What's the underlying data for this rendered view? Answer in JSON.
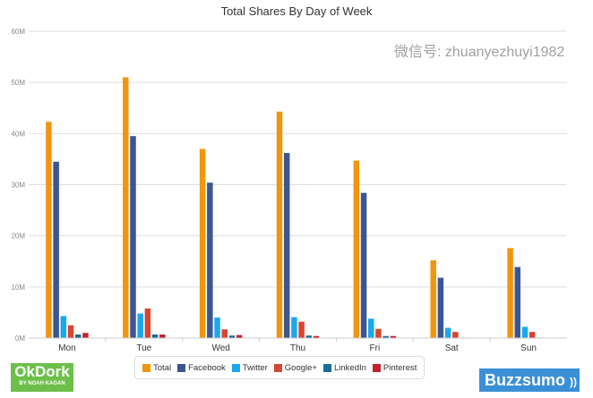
{
  "chart_data": {
    "type": "bar",
    "title": "Total Shares By Day of Week",
    "xlabel": "",
    "ylabel": "",
    "ylim": [
      0,
      60
    ],
    "yticks": [
      "0M",
      "10M",
      "20M",
      "30M",
      "40M",
      "50M",
      "60M"
    ],
    "ytick_values": [
      0,
      10,
      20,
      30,
      40,
      50,
      60
    ],
    "grid": true,
    "legend_position": "bottom",
    "categories": [
      "Mon",
      "Tue",
      "Wed",
      "Thu",
      "Fri",
      "Sat",
      "Sun"
    ],
    "series": [
      {
        "name": "Total",
        "color": "#f0960e",
        "values": [
          42.3,
          51.0,
          37.0,
          44.3,
          34.7,
          15.2,
          17.6
        ]
      },
      {
        "name": "Facebook",
        "color": "#3b5694",
        "values": [
          34.5,
          39.5,
          30.4,
          36.2,
          28.4,
          11.8,
          13.9
        ]
      },
      {
        "name": "Twitter",
        "color": "#1ba8e8",
        "values": [
          4.3,
          4.8,
          4.0,
          4.1,
          3.8,
          2.0,
          2.2
        ]
      },
      {
        "name": "Google+",
        "color": "#d9452f",
        "values": [
          2.5,
          5.8,
          1.7,
          3.2,
          1.8,
          1.2,
          1.2
        ]
      },
      {
        "name": "LinkedIn",
        "color": "#1a6d9a",
        "values": [
          0.7,
          0.7,
          0.5,
          0.5,
          0.4,
          0.1,
          0.1
        ]
      },
      {
        "name": "Pinterest",
        "color": "#c8202e",
        "values": [
          1.0,
          0.7,
          0.6,
          0.4,
          0.4,
          0.0,
          0.0
        ]
      }
    ]
  },
  "logos": {
    "okdork": "OkDork",
    "okdork_sub": "BY NOAH KAGAN",
    "buzzsumo": "Buzzsumo"
  },
  "watermark": "微信号: zhuanyezhuyi1982"
}
